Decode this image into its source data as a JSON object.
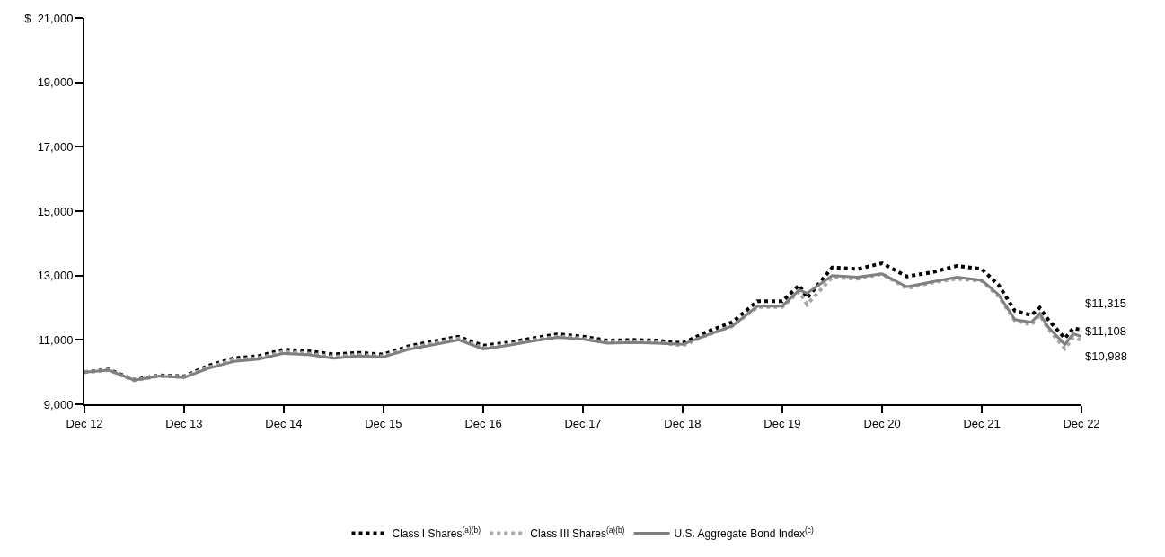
{
  "chart_data": {
    "type": "line",
    "x": [
      "2012-12",
      "2013-03",
      "2013-06",
      "2013-09",
      "2013-12",
      "2014-03",
      "2014-06",
      "2014-09",
      "2014-12",
      "2015-03",
      "2015-06",
      "2015-09",
      "2015-12",
      "2016-03",
      "2016-06",
      "2016-09",
      "2016-12",
      "2017-03",
      "2017-06",
      "2017-09",
      "2017-12",
      "2018-03",
      "2018-06",
      "2018-09",
      "2018-12",
      "2019-03",
      "2019-06",
      "2019-09",
      "2019-12",
      "2020-02",
      "2020-03",
      "2020-06",
      "2020-09",
      "2020-12",
      "2021-03",
      "2021-06",
      "2021-09",
      "2021-12",
      "2022-02",
      "2022-04",
      "2022-06",
      "2022-07",
      "2022-08",
      "2022-10",
      "2022-11",
      "2022-12"
    ],
    "series": [
      {
        "name": "Class I Shares$^{(a)(b)}$",
        "color": "#000000",
        "line_style": "dotted",
        "values": [
          10000,
          10080,
          9760,
          9900,
          9870,
          10200,
          10430,
          10500,
          10700,
          10650,
          10550,
          10600,
          10550,
          10800,
          10950,
          11100,
          10820,
          10920,
          11050,
          11180,
          11100,
          10980,
          11000,
          10980,
          10900,
          11250,
          11550,
          12200,
          12200,
          12700,
          12300,
          13250,
          13200,
          13380,
          12970,
          13100,
          13300,
          13200,
          12700,
          11900,
          11770,
          12000,
          11630,
          11050,
          11360,
          11315
        ]
      },
      {
        "name": "Class III Shares$^{(a)(b)}$",
        "color": "#a6a6a6",
        "line_style": "dotted",
        "values": [
          10000,
          10060,
          9740,
          9880,
          9850,
          10150,
          10380,
          10440,
          10630,
          10580,
          10480,
          10540,
          10490,
          10740,
          10890,
          11040,
          10750,
          10850,
          10990,
          11110,
          11040,
          10920,
          10940,
          10920,
          10820,
          11150,
          11430,
          12020,
          12020,
          12500,
          12100,
          12950,
          12900,
          13050,
          12600,
          12780,
          12900,
          12830,
          12350,
          11600,
          11470,
          11770,
          11350,
          10730,
          11080,
          10988
        ]
      },
      {
        "name": "U.S. Aggregate Bond Index$^{(c)}$",
        "color": "#808080",
        "line_style": "solid",
        "values": [
          10000,
          10060,
          9750,
          9880,
          9830,
          10120,
          10330,
          10400,
          10580,
          10540,
          10430,
          10500,
          10470,
          10700,
          10850,
          11000,
          10720,
          10830,
          10970,
          11080,
          11020,
          10900,
          10920,
          10900,
          10860,
          11150,
          11430,
          12050,
          12050,
          12550,
          12450,
          13000,
          12950,
          13050,
          12650,
          12800,
          12950,
          12850,
          12400,
          11630,
          11550,
          11820,
          11400,
          10860,
          11190,
          11108
        ]
      }
    ],
    "annotations": [
      {
        "text": "$11,315",
        "x": "2022-12",
        "y": 11315
      },
      {
        "text": "$11,108",
        "x": "2022-12",
        "y": 11108
      },
      {
        "text": "$10,988",
        "x": "2022-12",
        "y": 10988
      }
    ],
    "xlim": [
      "2012-12",
      "2022-12"
    ],
    "xticks": [
      {
        "value": "2012-12",
        "label": "Dec 12"
      },
      {
        "value": "2013-12",
        "label": "Dec 13"
      },
      {
        "value": "2014-12",
        "label": "Dec 14"
      },
      {
        "value": "2015-12",
        "label": "Dec 15"
      },
      {
        "value": "2016-12",
        "label": "Dec 16"
      },
      {
        "value": "2017-12",
        "label": "Dec 17"
      },
      {
        "value": "2018-12",
        "label": "Dec 18"
      },
      {
        "value": "2019-12",
        "label": "Dec 19"
      },
      {
        "value": "2020-12",
        "label": "Dec 20"
      },
      {
        "value": "2021-12",
        "label": "Dec 21"
      },
      {
        "value": "2022-12",
        "label": "Dec 22"
      }
    ],
    "ylim": [
      9000,
      21000
    ],
    "yticks": [
      {
        "value": 9000,
        "label": "9,000"
      },
      {
        "value": 11000,
        "label": "11,000"
      },
      {
        "value": 13000,
        "label": "13,000"
      },
      {
        "value": 15000,
        "label": "15,000"
      },
      {
        "value": 17000,
        "label": "17,000"
      },
      {
        "value": 19000,
        "label": "19,000"
      },
      {
        "value": 21000,
        "label": "$  21,000"
      }
    ],
    "grid": false,
    "legend": "bottom",
    "marker": "none"
  }
}
